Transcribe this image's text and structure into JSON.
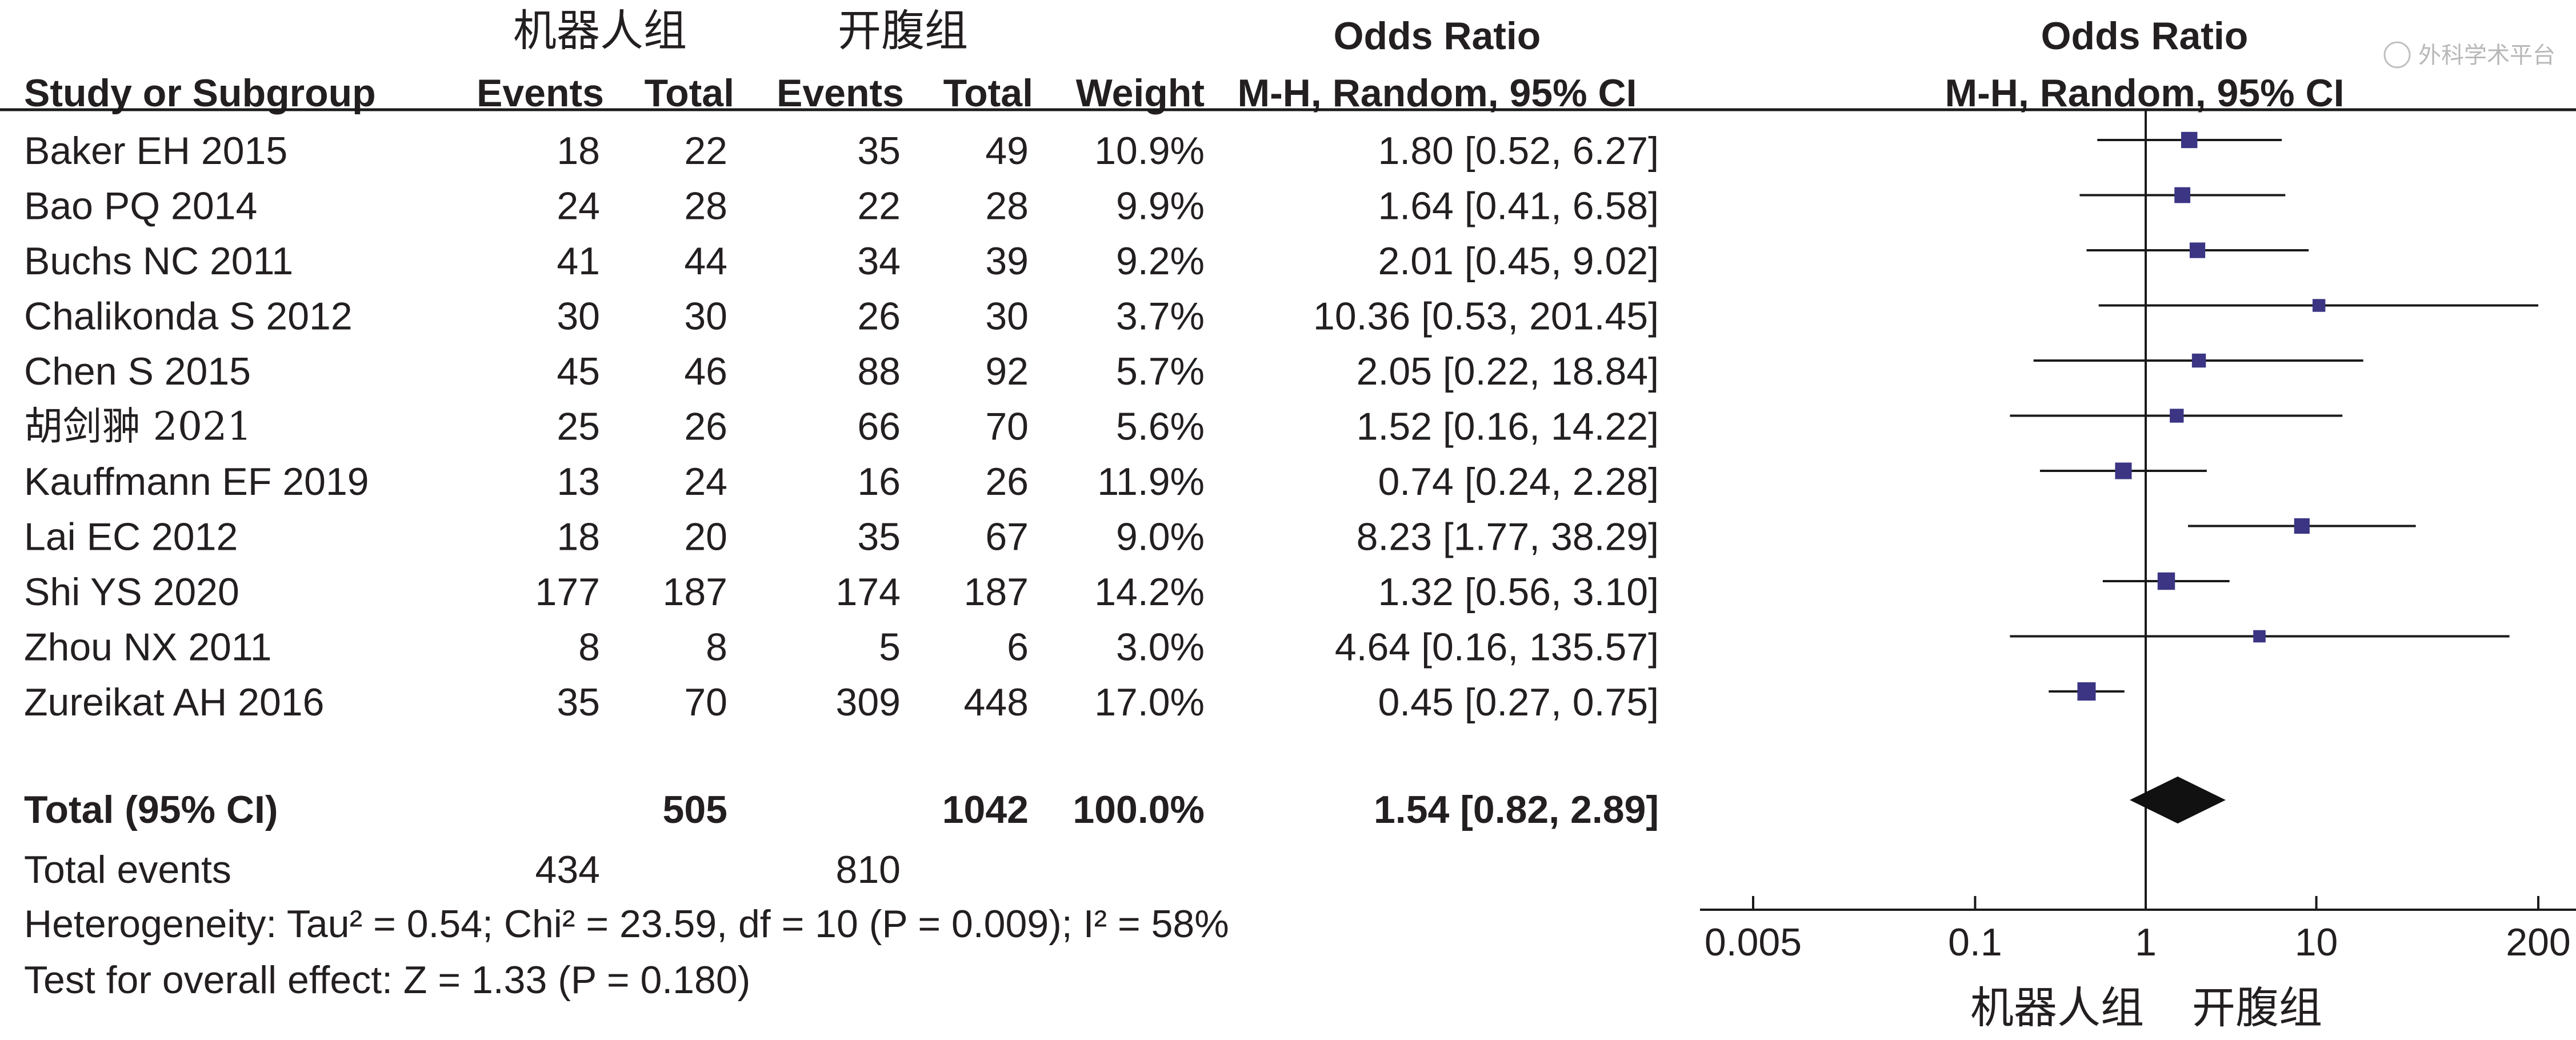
{
  "table": {
    "group_labels": {
      "experimental": "机器人组",
      "control": "开腹组"
    },
    "columns": {
      "study": "Study or Subgroup",
      "events": "Events",
      "total": "Total",
      "weight": "Weight",
      "or_title": "Odds Ratio",
      "or_method": "M-H, Random, 95% CI"
    },
    "rows": [
      {
        "study": "Baker EH 2015",
        "e_events": "18",
        "e_total": "22",
        "c_events": "35",
        "c_total": "49",
        "weight": "10.9%",
        "ci_text": "1.80 [0.52, 6.27]"
      },
      {
        "study": "Bao PQ 2014",
        "e_events": "24",
        "e_total": "28",
        "c_events": "22",
        "c_total": "28",
        "weight": "9.9%",
        "ci_text": "1.64 [0.41, 6.58]"
      },
      {
        "study": "Buchs NC 2011",
        "e_events": "41",
        "e_total": "44",
        "c_events": "34",
        "c_total": "39",
        "weight": "9.2%",
        "ci_text": "2.01 [0.45, 9.02]"
      },
      {
        "study": "Chalikonda S 2012",
        "e_events": "30",
        "e_total": "30",
        "c_events": "26",
        "c_total": "30",
        "weight": "3.7%",
        "ci_text": "10.36 [0.53, 201.45]"
      },
      {
        "study": "Chen S 2015",
        "e_events": "45",
        "e_total": "46",
        "c_events": "88",
        "c_total": "92",
        "weight": "5.7%",
        "ci_text": "2.05 [0.22, 18.84]"
      },
      {
        "study": "胡剑翀 2021",
        "e_events": "25",
        "e_total": "26",
        "c_events": "66",
        "c_total": "70",
        "weight": "5.6%",
        "ci_text": "1.52 [0.16, 14.22]"
      },
      {
        "study": "Kauffmann EF 2019",
        "e_events": "13",
        "e_total": "24",
        "c_events": "16",
        "c_total": "26",
        "weight": "11.9%",
        "ci_text": "0.74 [0.24, 2.28]"
      },
      {
        "study": "Lai EC 2012",
        "e_events": "18",
        "e_total": "20",
        "c_events": "35",
        "c_total": "67",
        "weight": "9.0%",
        "ci_text": "8.23 [1.77, 38.29]"
      },
      {
        "study": "Shi YS 2020",
        "e_events": "177",
        "e_total": "187",
        "c_events": "174",
        "c_total": "187",
        "weight": "14.2%",
        "ci_text": "1.32 [0.56, 3.10]"
      },
      {
        "study": "Zhou NX 2011",
        "e_events": "8",
        "e_total": "8",
        "c_events": "5",
        "c_total": "6",
        "weight": "3.0%",
        "ci_text": "4.64 [0.16, 135.57]"
      },
      {
        "study": "Zureikat AH 2016",
        "e_events": "35",
        "e_total": "70",
        "c_events": "309",
        "c_total": "448",
        "weight": "17.0%",
        "ci_text": "0.45 [0.27, 0.75]"
      }
    ],
    "total_row": {
      "label": "Total (95% CI)",
      "e_total": "505",
      "c_total": "1042",
      "weight": "100.0%",
      "ci_text": "1.54 [0.82, 2.89]"
    },
    "events_row": {
      "label": "Total events",
      "e_events": "434",
      "c_events": "810"
    },
    "heterogeneity": "Heterogeneity: Tau² = 0.54; Chi² = 23.59, df = 10 (P = 0.009); I² = 58%",
    "overall_effect": "Test for overall effect: Z = 1.33 (P = 0.180)"
  },
  "chart_data": {
    "type": "forest",
    "title": "Odds Ratio",
    "subtitle": "M-H, Random, 95% CI",
    "x_scale": "log",
    "xlim": [
      0.005,
      200
    ],
    "ticks": [
      0.005,
      0.1,
      1,
      10,
      200
    ],
    "tick_labels": [
      "0.005",
      "0.1",
      "1",
      "10",
      "200"
    ],
    "reference_line": 1,
    "favours_left": "机器人组",
    "favours_right": "开腹组",
    "square_color": "#3b3584",
    "studies": [
      {
        "study": "Baker EH 2015",
        "or": 1.8,
        "lower": 0.52,
        "upper": 6.27,
        "weight": 10.9
      },
      {
        "study": "Bao PQ 2014",
        "or": 1.64,
        "lower": 0.41,
        "upper": 6.58,
        "weight": 9.9
      },
      {
        "study": "Buchs NC 2011",
        "or": 2.01,
        "lower": 0.45,
        "upper": 9.02,
        "weight": 9.2
      },
      {
        "study": "Chalikonda S 2012",
        "or": 10.36,
        "lower": 0.53,
        "upper": 201.45,
        "weight": 3.7
      },
      {
        "study": "Chen S 2015",
        "or": 2.05,
        "lower": 0.22,
        "upper": 18.84,
        "weight": 5.7
      },
      {
        "study": "胡剑翀 2021",
        "or": 1.52,
        "lower": 0.16,
        "upper": 14.22,
        "weight": 5.6
      },
      {
        "study": "Kauffmann EF 2019",
        "or": 0.74,
        "lower": 0.24,
        "upper": 2.28,
        "weight": 11.9
      },
      {
        "study": "Lai EC 2012",
        "or": 8.23,
        "lower": 1.77,
        "upper": 38.29,
        "weight": 9.0
      },
      {
        "study": "Shi YS 2020",
        "or": 1.32,
        "lower": 0.56,
        "upper": 3.1,
        "weight": 14.2
      },
      {
        "study": "Zhou NX 2011",
        "or": 4.64,
        "lower": 0.16,
        "upper": 135.57,
        "weight": 3.0
      },
      {
        "study": "Zureikat AH 2016",
        "or": 0.45,
        "lower": 0.27,
        "upper": 0.75,
        "weight": 17.0
      }
    ],
    "pooled": {
      "or": 1.54,
      "lower": 0.82,
      "upper": 2.89
    }
  },
  "watermark": "外科学术平台"
}
